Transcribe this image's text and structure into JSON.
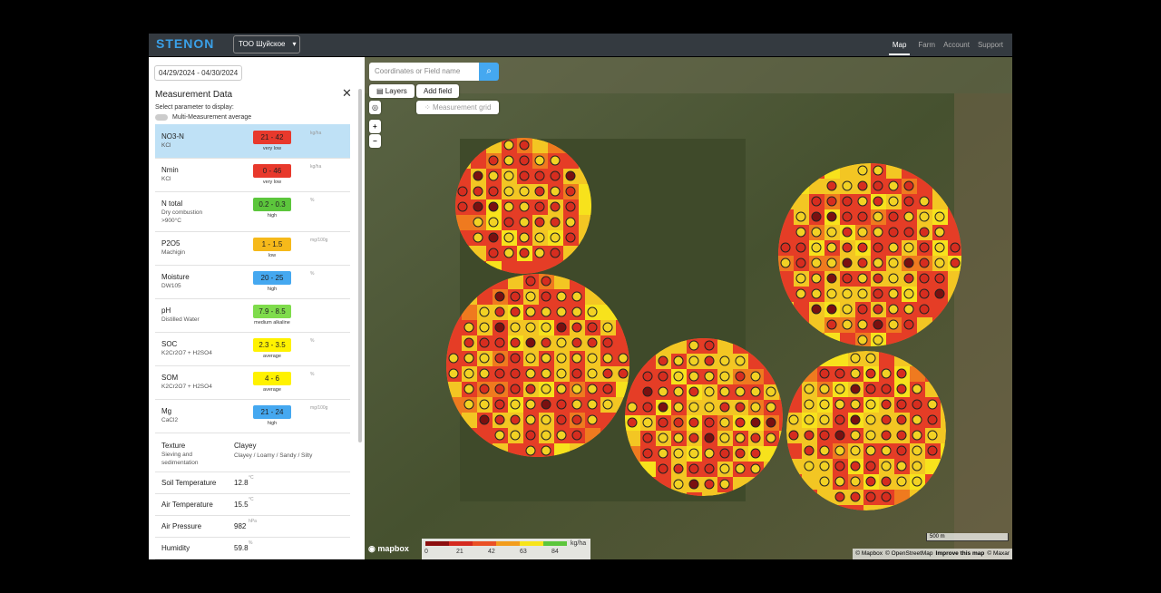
{
  "header": {
    "brand": "STENON",
    "farm_select": "ТОО Шуйское",
    "nav": [
      "Map",
      "Farm",
      "Account",
      "Support"
    ]
  },
  "sidebar": {
    "date_range": "04/29/2024 - 04/30/2024",
    "title": "Measurement Data",
    "subtitle": "Select parameter to display:",
    "toggle": "Multi-Measurement average",
    "params": [
      {
        "name": "NO3-N",
        "method": [
          "KCl"
        ],
        "range": "21 - 42",
        "rating": "very low",
        "unit": "kg/ha",
        "color": "#e8392c"
      },
      {
        "name": "Nmin",
        "method": [
          "KCl"
        ],
        "range": "0 - 46",
        "rating": "very low",
        "unit": "kg/ha",
        "color": "#e8392c"
      },
      {
        "name": "N total",
        "method": [
          "Dry combustion",
          ">900°C"
        ],
        "range": "0.2 - 0.3",
        "rating": "high",
        "unit": "%",
        "color": "#5cc63c"
      },
      {
        "name": "P2O5",
        "method": [
          "Machigin"
        ],
        "range": "1 - 1.5",
        "rating": "low",
        "unit": "mg/100g",
        "color": "#f6b91a"
      },
      {
        "name": "Moisture",
        "method": [
          "DW105"
        ],
        "range": "20 - 25",
        "rating": "high",
        "unit": "%",
        "color": "#45a8f0"
      },
      {
        "name": "pH",
        "method": [
          "Distilled Water"
        ],
        "range": "7.9 - 8.5",
        "rating": "medium alkaline",
        "unit": null,
        "color": "#7fdc4c"
      },
      {
        "name": "SOC",
        "method": [
          "K2Cr2O7 + H2SO4"
        ],
        "range": "2.3 - 3.5",
        "rating": "average",
        "unit": "%",
        "color": "#fff200"
      },
      {
        "name": "SOM",
        "method": [
          "K2Cr2O7 + H2SO4"
        ],
        "range": "4 - 6",
        "rating": "average",
        "unit": "%",
        "color": "#fff200"
      },
      {
        "name": "Mg",
        "method": [
          "CaCl2"
        ],
        "range": "21 - 24",
        "rating": "high",
        "unit": "mg/100g",
        "color": "#45a8f0"
      }
    ],
    "texture": {
      "name": "Texture",
      "method": [
        "Sieving and",
        "sedimentation"
      ],
      "value": "Clayey",
      "options": "Clayey / Loamy / Sandy / Silty"
    },
    "readings": [
      {
        "name": "Soil Temperature",
        "value": "12.8",
        "unit": "°C"
      },
      {
        "name": "Air Temperature",
        "value": "15.5",
        "unit": "°C"
      },
      {
        "name": "Air Pressure",
        "value": "982",
        "unit": "hPa"
      },
      {
        "name": "Humidity",
        "value": "59.8",
        "unit": "%"
      }
    ]
  },
  "map": {
    "search_placeholder": "Coordinates or Field name",
    "layers": "Layers",
    "add_field": "Add field",
    "measurement_grid": "Measurement grid",
    "zoom_in": "+",
    "zoom_out": "−",
    "scale": "500 m",
    "logo": "mapbox",
    "attribution": [
      "© Mapbox",
      "© OpenStreetMap",
      "Improve this map",
      "© Maxar"
    ],
    "legend": {
      "ticks": [
        "0",
        "21",
        "42",
        "63",
        "84"
      ],
      "unit": "kg/ha"
    }
  }
}
